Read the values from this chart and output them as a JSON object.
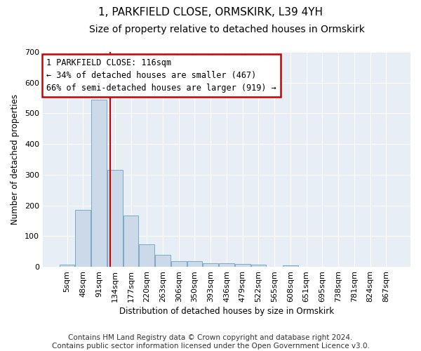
{
  "title": "1, PARKFIELD CLOSE, ORMSKIRK, L39 4YH",
  "subtitle": "Size of property relative to detached houses in Ormskirk",
  "xlabel": "Distribution of detached houses by size in Ormskirk",
  "ylabel": "Number of detached properties",
  "bar_labels": [
    "5sqm",
    "48sqm",
    "91sqm",
    "134sqm",
    "177sqm",
    "220sqm",
    "263sqm",
    "306sqm",
    "350sqm",
    "393sqm",
    "436sqm",
    "479sqm",
    "522sqm",
    "565sqm",
    "608sqm",
    "651sqm",
    "695sqm",
    "738sqm",
    "781sqm",
    "824sqm",
    "867sqm"
  ],
  "bar_values": [
    8,
    185,
    545,
    315,
    168,
    73,
    40,
    18,
    18,
    12,
    12,
    10,
    8,
    0,
    4,
    0,
    0,
    0,
    0,
    0,
    0
  ],
  "bar_color": "#ccd9e8",
  "bar_edgecolor": "#7aaac8",
  "vline_x": 2.72,
  "vline_color": "#cc0000",
  "annotation_line1": "1 PARKFIELD CLOSE: 116sqm",
  "annotation_line2": "← 34% of detached houses are smaller (467)",
  "annotation_line3": "66% of semi-detached houses are larger (919) →",
  "annotation_box_facecolor": "#ffffff",
  "annotation_box_edgecolor": "#cc0000",
  "ylim": [
    0,
    700
  ],
  "yticks": [
    0,
    100,
    200,
    300,
    400,
    500,
    600,
    700
  ],
  "footer_line1": "Contains HM Land Registry data © Crown copyright and database right 2024.",
  "footer_line2": "Contains public sector information licensed under the Open Government Licence v3.0.",
  "bg_color": "#ffffff",
  "plot_bg_color": "#e8eef5",
  "grid_color": "#ffffff",
  "title_fontsize": 11,
  "subtitle_fontsize": 10,
  "axis_fontsize": 8.5,
  "tick_fontsize": 8,
  "footer_fontsize": 7.5
}
